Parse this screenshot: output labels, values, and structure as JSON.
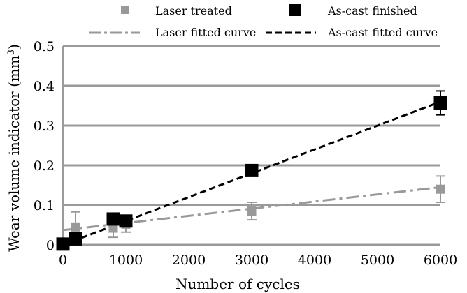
{
  "chart_data": {
    "type": "scatter",
    "title": "",
    "xlabel": "Number of cycles",
    "ylabel_main": "Wear volume indicator (mm",
    "ylabel_sup": "3",
    "ylabel_end": ")",
    "xlim": [
      0,
      6000
    ],
    "ylim": [
      0,
      0.5
    ],
    "x_ticks": [
      0,
      1000,
      2000,
      3000,
      4000,
      5000,
      6000
    ],
    "x_tick_labels": [
      "0",
      "1000",
      "2000",
      "3000",
      "4000",
      "5000",
      "6000"
    ],
    "y_ticks": [
      0,
      0.1,
      0.2,
      0.3,
      0.4,
      0.5
    ],
    "y_tick_labels": [
      "0",
      "0.1",
      "0.2",
      "0.3",
      "0.4",
      "0.5"
    ],
    "grid": "horizontal",
    "legend_position": "top",
    "series": [
      {
        "name": "Laser treated",
        "kind": "points",
        "color": "#999999",
        "marker": "square-small",
        "points": [
          {
            "x": 0,
            "y": 0.0,
            "err": 0.0
          },
          {
            "x": 200,
            "y": 0.045,
            "err": 0.038
          },
          {
            "x": 800,
            "y": 0.042,
            "err": 0.023
          },
          {
            "x": 1000,
            "y": 0.052,
            "err": 0.02
          },
          {
            "x": 3000,
            "y": 0.085,
            "err": 0.022
          },
          {
            "x": 6000,
            "y": 0.14,
            "err": 0.033
          }
        ]
      },
      {
        "name": "As-cast finished",
        "kind": "points",
        "color": "#000000",
        "marker": "square-large",
        "points": [
          {
            "x": 0,
            "y": 0.002,
            "err": 0.0
          },
          {
            "x": 200,
            "y": 0.015,
            "err": 0.0
          },
          {
            "x": 800,
            "y": 0.065,
            "err": 0.0
          },
          {
            "x": 1000,
            "y": 0.06,
            "err": 0.0
          },
          {
            "x": 3000,
            "y": 0.187,
            "err": 0.0
          },
          {
            "x": 6000,
            "y": 0.357,
            "err": 0.03
          }
        ]
      },
      {
        "name": "Laser fitted curve",
        "kind": "line",
        "color": "#999999",
        "dash": "dashdot",
        "points": [
          {
            "x": 0,
            "y": 0.037
          },
          {
            "x": 6000,
            "y": 0.145
          }
        ]
      },
      {
        "name": "As-cast fitted curve",
        "kind": "line",
        "color": "#000000",
        "dash": "dashed",
        "points": [
          {
            "x": 0,
            "y": 0.0
          },
          {
            "x": 6000,
            "y": 0.36
          }
        ]
      }
    ]
  }
}
